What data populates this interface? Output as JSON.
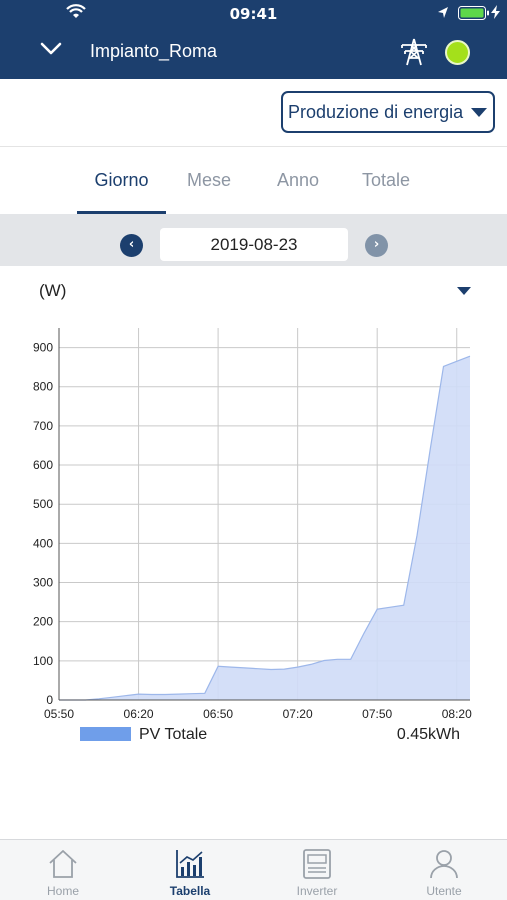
{
  "status_bar": {
    "time": "09:41"
  },
  "header": {
    "plant_name": "Impianto_Roma"
  },
  "selector": {
    "label": "Produzione di energia"
  },
  "tabs": [
    {
      "label": "Giorno",
      "active": true
    },
    {
      "label": "Mese",
      "active": false
    },
    {
      "label": "Anno",
      "active": false
    },
    {
      "label": "Totale",
      "active": false
    }
  ],
  "date_nav": {
    "prev_icon": "chevron-left-icon",
    "date": "2019-08-23",
    "next_icon": "chevron-right-icon"
  },
  "chart_unit": "(W)",
  "chart_data": {
    "type": "area",
    "x": [
      "05:50",
      "05:55",
      "06:00",
      "06:05",
      "06:10",
      "06:15",
      "06:20",
      "06:25",
      "06:30",
      "06:35",
      "06:40",
      "06:45",
      "06:50",
      "06:55",
      "07:00",
      "07:05",
      "07:10",
      "07:15",
      "07:20",
      "07:25",
      "07:30",
      "07:35",
      "07:40",
      "07:45",
      "07:50",
      "07:55",
      "08:00",
      "08:05",
      "08:10",
      "08:15",
      "08:20",
      "08:25"
    ],
    "series": [
      {
        "name": "PV Totale",
        "values": [
          0,
          0,
          0,
          3,
          7,
          11,
          15,
          14,
          14,
          15,
          16,
          17,
          86,
          84,
          82,
          80,
          78,
          79,
          84,
          91,
          101,
          104,
          104,
          170,
          232,
          237,
          242,
          420,
          640,
          852,
          865,
          878
        ]
      }
    ],
    "xticks": [
      "05:50",
      "06:20",
      "06:50",
      "07:20",
      "07:50",
      "08:20"
    ],
    "yticks": [
      0,
      100,
      200,
      300,
      400,
      500,
      600,
      700,
      800,
      900
    ],
    "ylim": [
      0,
      950
    ],
    "grid": true,
    "color": "#cfdcf7",
    "line_color": "#9db7ea"
  },
  "legend": {
    "label": "PV Totale",
    "color": "#6f9eea",
    "total": "0.45kWh"
  },
  "bottom_tabs": [
    {
      "label": "Home",
      "icon": "home-icon",
      "active": false
    },
    {
      "label": "Tabella",
      "icon": "bar-chart-icon",
      "active": true
    },
    {
      "label": "Inverter",
      "icon": "inverter-icon",
      "active": false
    },
    {
      "label": "Utente",
      "icon": "user-icon",
      "active": false
    }
  ]
}
